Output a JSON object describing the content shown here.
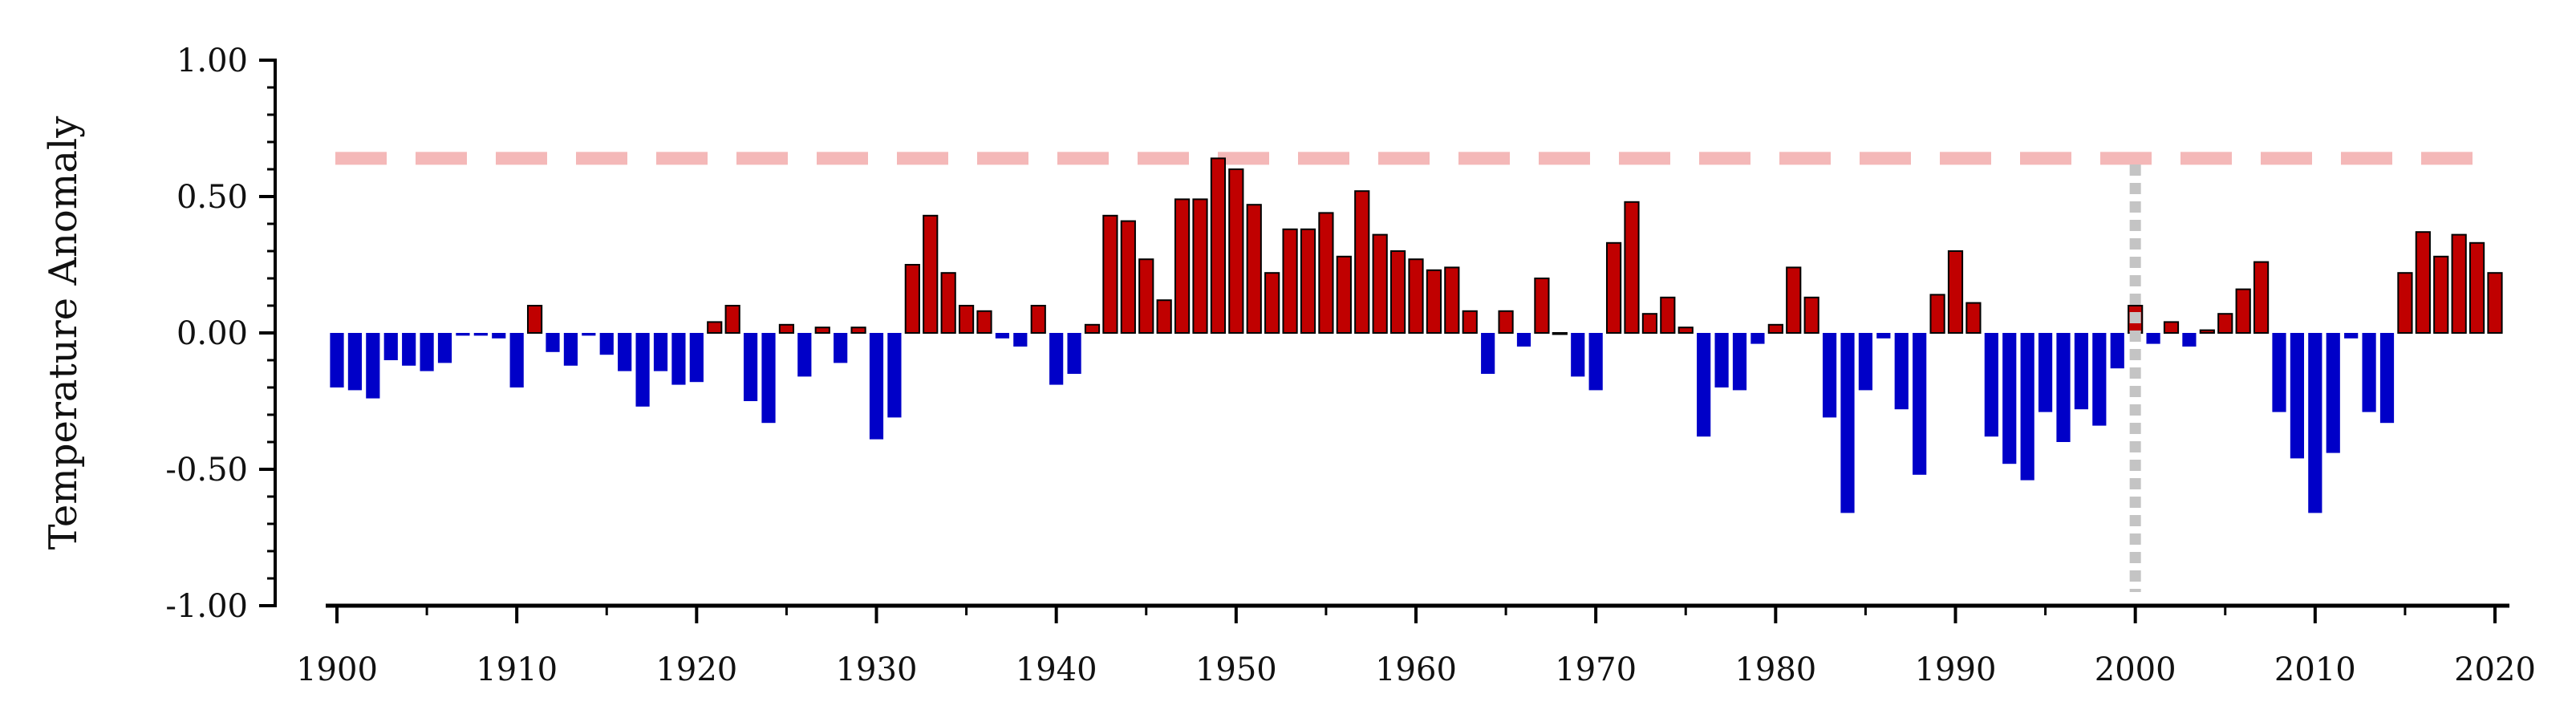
{
  "chart_data": {
    "type": "bar",
    "title": "",
    "xlabel": "",
    "ylabel": "Temperature Anomaly",
    "xlim": [
      1900,
      2020
    ],
    "ylim": [
      -1.0,
      1.0
    ],
    "x_ticks": [
      "1900",
      "1910",
      "1920",
      "1930",
      "1940",
      "1950",
      "1960",
      "1970",
      "1980",
      "1990",
      "2000",
      "2010",
      "2020"
    ],
    "y_ticks": [
      "1.00",
      "0.50",
      "0.00",
      "-0.50",
      "-1.00"
    ],
    "grid": false,
    "legend": "none",
    "colors": {
      "positive": "#c00000",
      "negative": "#0000c8",
      "bar_edge": "#000000",
      "reference_line": "#f4b8b8",
      "marker_line": "#c4c4c4"
    },
    "reference_line": {
      "y": 0.64,
      "style": "dashed"
    },
    "marker_line": {
      "x": 2000,
      "style": "dotted"
    },
    "x": [
      1900,
      1901,
      1902,
      1903,
      1904,
      1905,
      1906,
      1907,
      1908,
      1909,
      1910,
      1911,
      1912,
      1913,
      1914,
      1915,
      1916,
      1917,
      1918,
      1919,
      1920,
      1921,
      1922,
      1923,
      1924,
      1925,
      1926,
      1927,
      1928,
      1929,
      1930,
      1931,
      1932,
      1933,
      1934,
      1935,
      1936,
      1937,
      1938,
      1939,
      1940,
      1941,
      1942,
      1943,
      1944,
      1945,
      1946,
      1947,
      1948,
      1949,
      1950,
      1951,
      1952,
      1953,
      1954,
      1955,
      1956,
      1957,
      1958,
      1959,
      1960,
      1961,
      1962,
      1963,
      1964,
      1965,
      1966,
      1967,
      1968,
      1969,
      1970,
      1971,
      1972,
      1973,
      1974,
      1975,
      1976,
      1977,
      1978,
      1979,
      1980,
      1981,
      1982,
      1983,
      1984,
      1985,
      1986,
      1987,
      1988,
      1989,
      1990,
      1991,
      1992,
      1993,
      1994,
      1995,
      1996,
      1997,
      1998,
      1999,
      2000,
      2001,
      2002,
      2003,
      2004,
      2005,
      2006,
      2007,
      2008,
      2009,
      2010,
      2011,
      2012,
      2013,
      2014,
      2015,
      2016,
      2017,
      2018,
      2019,
      2020
    ],
    "values": [
      -0.2,
      -0.21,
      -0.24,
      -0.1,
      -0.12,
      -0.14,
      -0.11,
      -0.01,
      -0.01,
      -0.02,
      -0.2,
      0.1,
      -0.07,
      -0.12,
      -0.01,
      -0.08,
      -0.14,
      -0.27,
      -0.14,
      -0.19,
      -0.18,
      0.04,
      0.1,
      -0.25,
      -0.33,
      0.03,
      -0.16,
      0.02,
      -0.11,
      0.02,
      -0.39,
      -0.31,
      0.25,
      0.43,
      0.22,
      0.1,
      0.08,
      -0.02,
      -0.05,
      0.1,
      -0.19,
      -0.15,
      0.03,
      0.43,
      0.41,
      0.27,
      0.12,
      0.49,
      0.49,
      0.64,
      0.6,
      0.47,
      0.22,
      0.38,
      0.38,
      0.44,
      0.28,
      0.52,
      0.36,
      0.3,
      0.27,
      0.23,
      0.24,
      0.08,
      -0.15,
      0.08,
      -0.05,
      0.2,
      0.0,
      -0.16,
      -0.21,
      0.33,
      0.48,
      0.07,
      0.13,
      0.02,
      -0.38,
      -0.2,
      -0.21,
      -0.04,
      0.03,
      0.24,
      0.13,
      -0.31,
      -0.66,
      -0.21,
      -0.02,
      -0.28,
      -0.52,
      0.14,
      0.3,
      0.11,
      -0.38,
      -0.48,
      -0.54,
      -0.29,
      -0.4,
      -0.28,
      -0.34,
      -0.13,
      0.1,
      -0.04,
      0.04,
      -0.05,
      0.01,
      0.07,
      0.16,
      0.26,
      -0.29,
      -0.46,
      -0.66,
      -0.44,
      -0.02,
      -0.29,
      -0.33,
      0.22,
      0.37,
      0.28,
      0.36,
      0.33,
      0.22
    ]
  }
}
